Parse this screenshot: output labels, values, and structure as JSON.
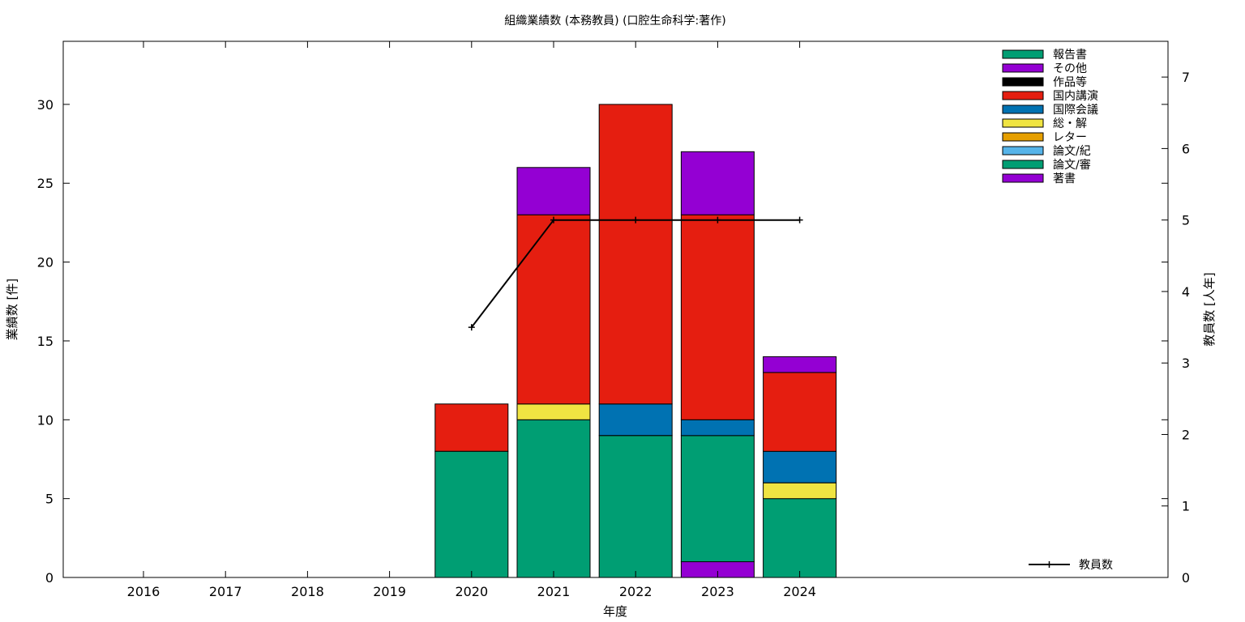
{
  "chart_data": {
    "type": "bar",
    "title": "組織業績数 (本務教員) (口腔生命科学:著作)",
    "xlabel": "年度",
    "ylabel": "業績数 [件]",
    "y2label": "教員数 [人年]",
    "categories": [
      "2016",
      "2017",
      "2018",
      "2019",
      "2020",
      "2021",
      "2022",
      "2023",
      "2024"
    ],
    "ylim": [
      0,
      34
    ],
    "y_ticks": [
      0,
      5,
      10,
      15,
      20,
      25,
      30
    ],
    "y2lim": [
      0,
      7.5
    ],
    "y2_ticks": [
      0,
      1,
      2,
      3,
      4,
      5,
      6,
      7
    ],
    "stacked": true,
    "grid": false,
    "legend_position": "top-right",
    "series": [
      {
        "name": "著書",
        "color": "#9400d3",
        "values": [
          0,
          0,
          0,
          0,
          0,
          0,
          0,
          1,
          0
        ]
      },
      {
        "name": "論文/審",
        "color": "#009e73",
        "values": [
          0,
          0,
          0,
          0,
          8,
          10,
          9,
          8,
          5
        ]
      },
      {
        "name": "論文/紀",
        "color": "#56b4e9",
        "values": [
          0,
          0,
          0,
          0,
          0,
          0,
          0,
          0,
          0
        ]
      },
      {
        "name": "レター",
        "color": "#e69f00",
        "values": [
          0,
          0,
          0,
          0,
          0,
          0,
          0,
          0,
          0
        ]
      },
      {
        "name": "総・解",
        "color": "#f0e442",
        "values": [
          0,
          0,
          0,
          0,
          0,
          1,
          0,
          0,
          1
        ]
      },
      {
        "name": "国際会議",
        "color": "#0072b2",
        "values": [
          0,
          0,
          0,
          0,
          0,
          0,
          2,
          1,
          2
        ]
      },
      {
        "name": "国内講演",
        "color": "#e51e10",
        "values": [
          0,
          0,
          0,
          0,
          3,
          12,
          19,
          13,
          5
        ]
      },
      {
        "name": "作品等",
        "color": "#000000",
        "values": [
          0,
          0,
          0,
          0,
          0,
          0,
          0,
          0,
          0
        ]
      },
      {
        "name": "その他",
        "color": "#9400d3",
        "values": [
          0,
          0,
          0,
          0,
          0,
          3,
          0,
          4,
          1
        ]
      },
      {
        "name": "報告書",
        "color": "#009e73",
        "values": [
          0,
          0,
          0,
          0,
          0,
          0,
          0,
          0,
          0
        ]
      }
    ],
    "line_series": {
      "name": "教員数",
      "color": "#000000",
      "axis": "right",
      "x": [
        "2020",
        "2021",
        "2022",
        "2023",
        "2024"
      ],
      "values": [
        3.5,
        5,
        5,
        5,
        5
      ]
    }
  }
}
